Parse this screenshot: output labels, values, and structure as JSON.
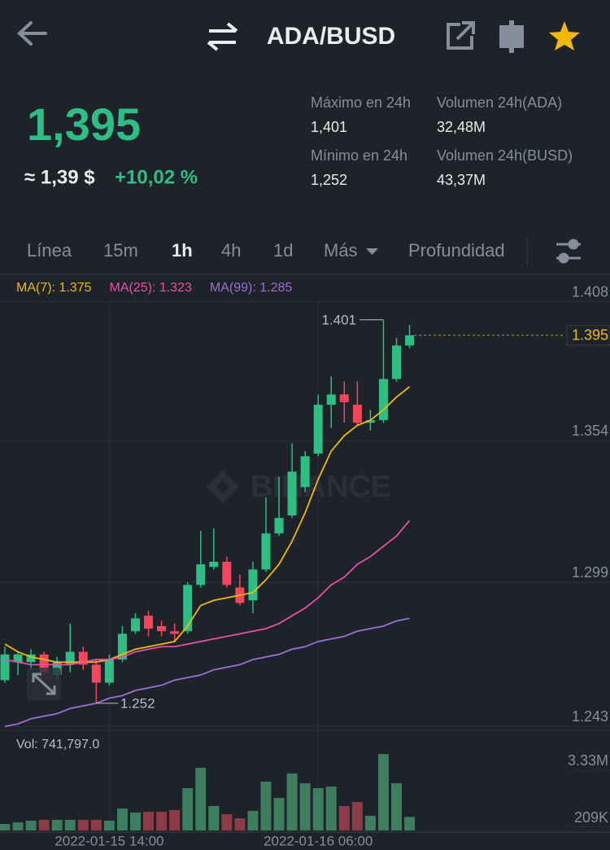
{
  "header": {
    "title": "ADA/BUSD"
  },
  "ticker": {
    "price": "1,395",
    "fiat": "≈ 1,39 $",
    "change": "+10,02 %",
    "stats": [
      {
        "label": "Máximo en 24h",
        "value": "1,401"
      },
      {
        "label": "Volumen 24h(ADA)",
        "value": "32,48M"
      },
      {
        "label": "Mínimo en 24h",
        "value": "1,252"
      },
      {
        "label": "Volumen 24h(BUSD)",
        "value": "43,37M"
      }
    ]
  },
  "tabs": [
    {
      "label": "Línea"
    },
    {
      "label": "15m"
    },
    {
      "label": "1h",
      "active": true
    },
    {
      "label": "4h"
    },
    {
      "label": "1d"
    },
    {
      "label": "Más"
    },
    {
      "label": "Profundidad"
    }
  ],
  "chart_data": {
    "type": "candlestick",
    "watermark": "BINANCE",
    "categories": [
      null,
      null,
      null,
      null,
      null,
      null,
      null,
      null,
      "2022-01-15 14:00",
      null,
      null,
      null,
      null,
      null,
      null,
      null,
      null,
      null,
      null,
      null,
      null,
      null,
      null,
      null,
      "2022-01-16 06:00",
      null,
      null,
      null,
      null,
      null,
      null,
      null
    ],
    "open": [
      1.261,
      1.268,
      1.268,
      1.271,
      1.263,
      1.267,
      1.272,
      1.267,
      1.26,
      1.269,
      1.28,
      1.286,
      1.282,
      1.28,
      1.28,
      1.298,
      1.305,
      1.307,
      1.297,
      1.292,
      1.304,
      1.318,
      1.325,
      1.336,
      1.349,
      1.368,
      1.372,
      1.368,
      1.361,
      1.362,
      1.378,
      1.391
    ],
    "high": [
      1.274,
      1.272,
      1.273,
      1.272,
      1.27,
      1.283,
      1.274,
      1.269,
      1.271,
      1.282,
      1.287,
      1.288,
      1.284,
      1.283,
      1.299,
      1.319,
      1.32,
      1.309,
      1.302,
      1.307,
      1.332,
      1.34,
      1.353,
      1.35,
      1.372,
      1.379,
      1.377,
      1.377,
      1.366,
      1.401,
      1.394,
      1.399
    ],
    "low": [
      1.26,
      1.263,
      1.265,
      1.263,
      1.261,
      1.264,
      1.265,
      1.252,
      1.259,
      1.268,
      1.279,
      1.278,
      1.278,
      1.276,
      1.279,
      1.297,
      1.304,
      1.297,
      1.29,
      1.287,
      1.303,
      1.317,
      1.324,
      1.334,
      1.348,
      1.359,
      1.361,
      1.36,
      1.358,
      1.361,
      1.377,
      1.39
    ],
    "close": [
      1.271,
      1.271,
      1.271,
      1.264,
      1.268,
      1.272,
      1.267,
      1.26,
      1.269,
      1.279,
      1.285,
      1.281,
      1.28,
      1.279,
      1.298,
      1.306,
      1.307,
      1.298,
      1.291,
      1.304,
      1.318,
      1.324,
      1.342,
      1.348,
      1.368,
      1.372,
      1.369,
      1.361,
      1.362,
      1.378,
      1.391,
      1.395
    ],
    "up_color": "#2ebd85",
    "down_color": "#f6465d",
    "series": [
      {
        "name": "MA(7): 1.375",
        "color": "#f0b90b",
        "values": [
          1.275,
          1.272,
          1.27,
          1.269,
          1.268,
          1.268,
          1.268,
          1.268,
          1.269,
          1.271,
          1.273,
          1.274,
          1.275,
          1.276,
          1.282,
          1.29,
          1.292,
          1.293,
          1.294,
          1.295,
          1.3,
          1.306,
          1.315,
          1.326,
          1.339,
          1.35,
          1.356,
          1.36,
          1.362,
          1.366,
          1.371,
          1.375
        ]
      },
      {
        "name": "MA(25): 1.323",
        "color": "#e84fa8",
        "values": [
          1.269,
          1.268,
          1.267,
          1.267,
          1.267,
          1.267,
          1.268,
          1.269,
          1.269,
          1.27,
          1.272,
          1.273,
          1.274,
          1.274,
          1.275,
          1.276,
          1.277,
          1.278,
          1.279,
          1.28,
          1.281,
          1.283,
          1.286,
          1.289,
          1.293,
          1.298,
          1.301,
          1.306,
          1.309,
          1.313,
          1.317,
          1.323
        ]
      },
      {
        "name": "MA(99): 1.285",
        "color": "#9b6fd6",
        "values": [
          1.243,
          1.244,
          1.246,
          1.247,
          1.248,
          1.25,
          1.251,
          1.252,
          1.254,
          1.255,
          1.257,
          1.258,
          1.259,
          1.261,
          1.262,
          1.263,
          1.265,
          1.266,
          1.267,
          1.269,
          1.27,
          1.271,
          1.273,
          1.274,
          1.276,
          1.277,
          1.278,
          1.28,
          1.281,
          1.282,
          1.284,
          1.285
        ]
      }
    ],
    "ylim": [
      1.2415,
      1.4177
    ],
    "yticks": [
      1.408,
      1.354,
      1.299,
      1.243
    ],
    "grid": true,
    "last_price": 1.395,
    "high_marker": 1.401,
    "low_marker": 1.252,
    "volume": {
      "title": "Vol: 741,797.0",
      "values": [
        357000,
        446000,
        535000,
        580000,
        580000,
        580000,
        580000,
        580000,
        535000,
        1204000,
        981000,
        1026000,
        1026000,
        1115000,
        2319000,
        3434000,
        1338000,
        892000,
        669000,
        1070000,
        2676000,
        1784000,
        3122000,
        2587000,
        2319000,
        2408000,
        1338000,
        1561000,
        803000,
        4192000,
        2587000,
        741797
      ],
      "up_color": "#3d7d60",
      "down_color": "#8e3b49",
      "ylim": [
        0,
        4240000
      ],
      "yticks": [
        {
          "value": 3330000,
          "label": "3.33M"
        },
        {
          "value": 209000,
          "label": "209K"
        }
      ]
    }
  }
}
